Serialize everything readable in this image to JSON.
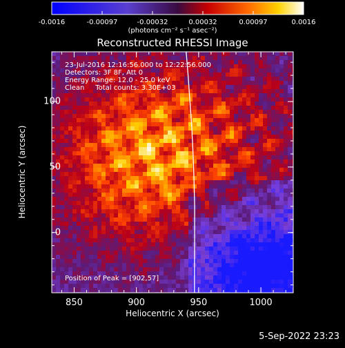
{
  "colorbar": {
    "tick_labels": [
      "-0.0016",
      "-0.00097",
      "-0.00032",
      "0.00032",
      "0.00097",
      "0.0016"
    ],
    "units_label": "(photons cm⁻² s⁻¹ asec⁻²)",
    "range": [
      -0.0016,
      0.0016
    ]
  },
  "chart_data": {
    "type": "heatmap",
    "title": "Reconstructed RHESSI Image",
    "xlabel": "Heliocentric X (arcsec)",
    "ylabel": "Heliocentric Y (arcsec)",
    "xlim": [
      832,
      1026
    ],
    "ylim": [
      -46,
      138
    ],
    "x_ticks": [
      "850",
      "900",
      "950",
      "1000"
    ],
    "x_tick_values": [
      850,
      900,
      950,
      1000
    ],
    "y_ticks": [
      "0",
      "50",
      "100"
    ],
    "y_tick_values": [
      0,
      50,
      100
    ],
    "peak": {
      "label": "Position of Peak = [902,57]",
      "x": 902,
      "y": 57
    },
    "limb_curve": {
      "x": [
        940,
        941.5,
        943,
        944.5,
        945.5,
        946.3,
        946.8,
        946.8,
        946.6
      ],
      "y": [
        138,
        120,
        100,
        80,
        60,
        40,
        20,
        0,
        -46
      ]
    },
    "annotations": [
      "23-Jul-2016 12:16:56.000 to 12:22:56.000",
      "Detectors: 3F 8F, Att 0",
      "Energy Range: 12.0 - 25.0 keV",
      "Clean     Total counts: 3.30E+03"
    ],
    "grid": false,
    "colormap": [
      "#1a1aff",
      "#7a3fd8",
      "#5a1b7a",
      "#b8001a",
      "#ff4400",
      "#ffd000",
      "#ffffff"
    ]
  },
  "footer": {
    "date": "5-Sep-2022 23:23"
  }
}
